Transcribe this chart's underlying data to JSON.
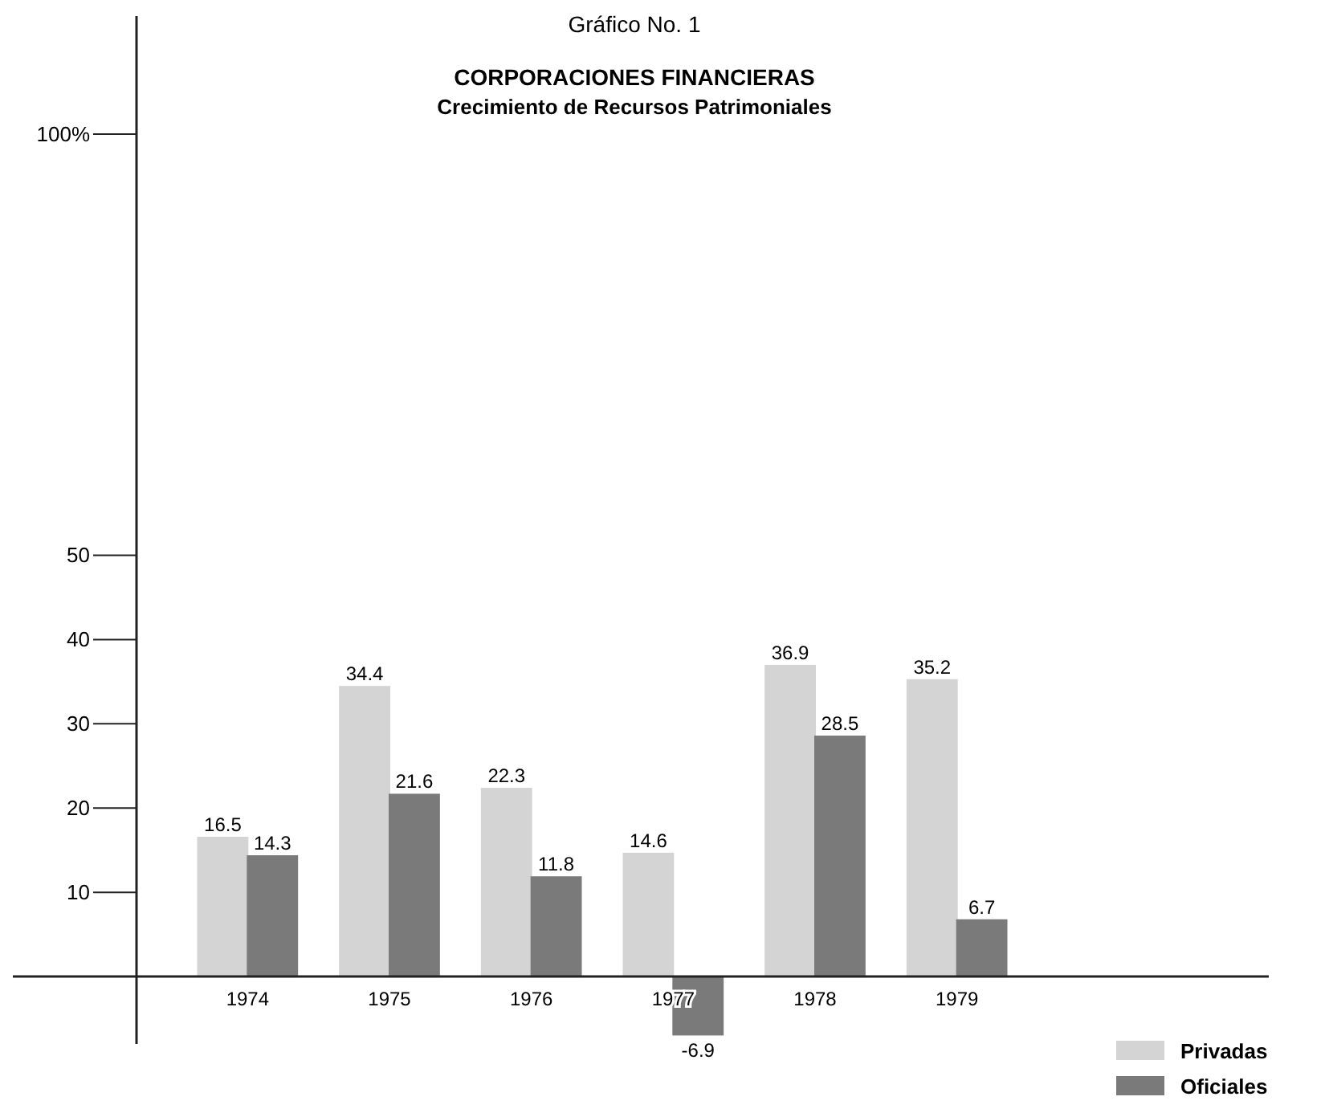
{
  "chart_data": {
    "type": "bar",
    "title": "CORPORACIONES FINANCIERAS",
    "subtitle": "Crecimiento de Recursos Patrimoniales",
    "annotations": [
      "Gráfico No. 1"
    ],
    "categories": [
      "1974",
      "1975",
      "1976",
      "1977",
      "1978",
      "1979"
    ],
    "series": [
      {
        "name": "Privadas",
        "color": "#d4d4d4",
        "values": [
          16.5,
          34.4,
          22.3,
          14.6,
          36.9,
          35.2
        ]
      },
      {
        "name": "Oficiales",
        "color": "#7a7a7a",
        "values": [
          14.3,
          21.6,
          11.8,
          -6.9,
          28.5,
          6.7
        ]
      }
    ],
    "ylim": [
      -8,
      114
    ],
    "yticks": [
      10,
      20,
      30,
      40,
      50,
      {
        "value": 100,
        "label": "100%"
      }
    ],
    "data_labels": true,
    "grid": false,
    "legend": "bottom right"
  }
}
